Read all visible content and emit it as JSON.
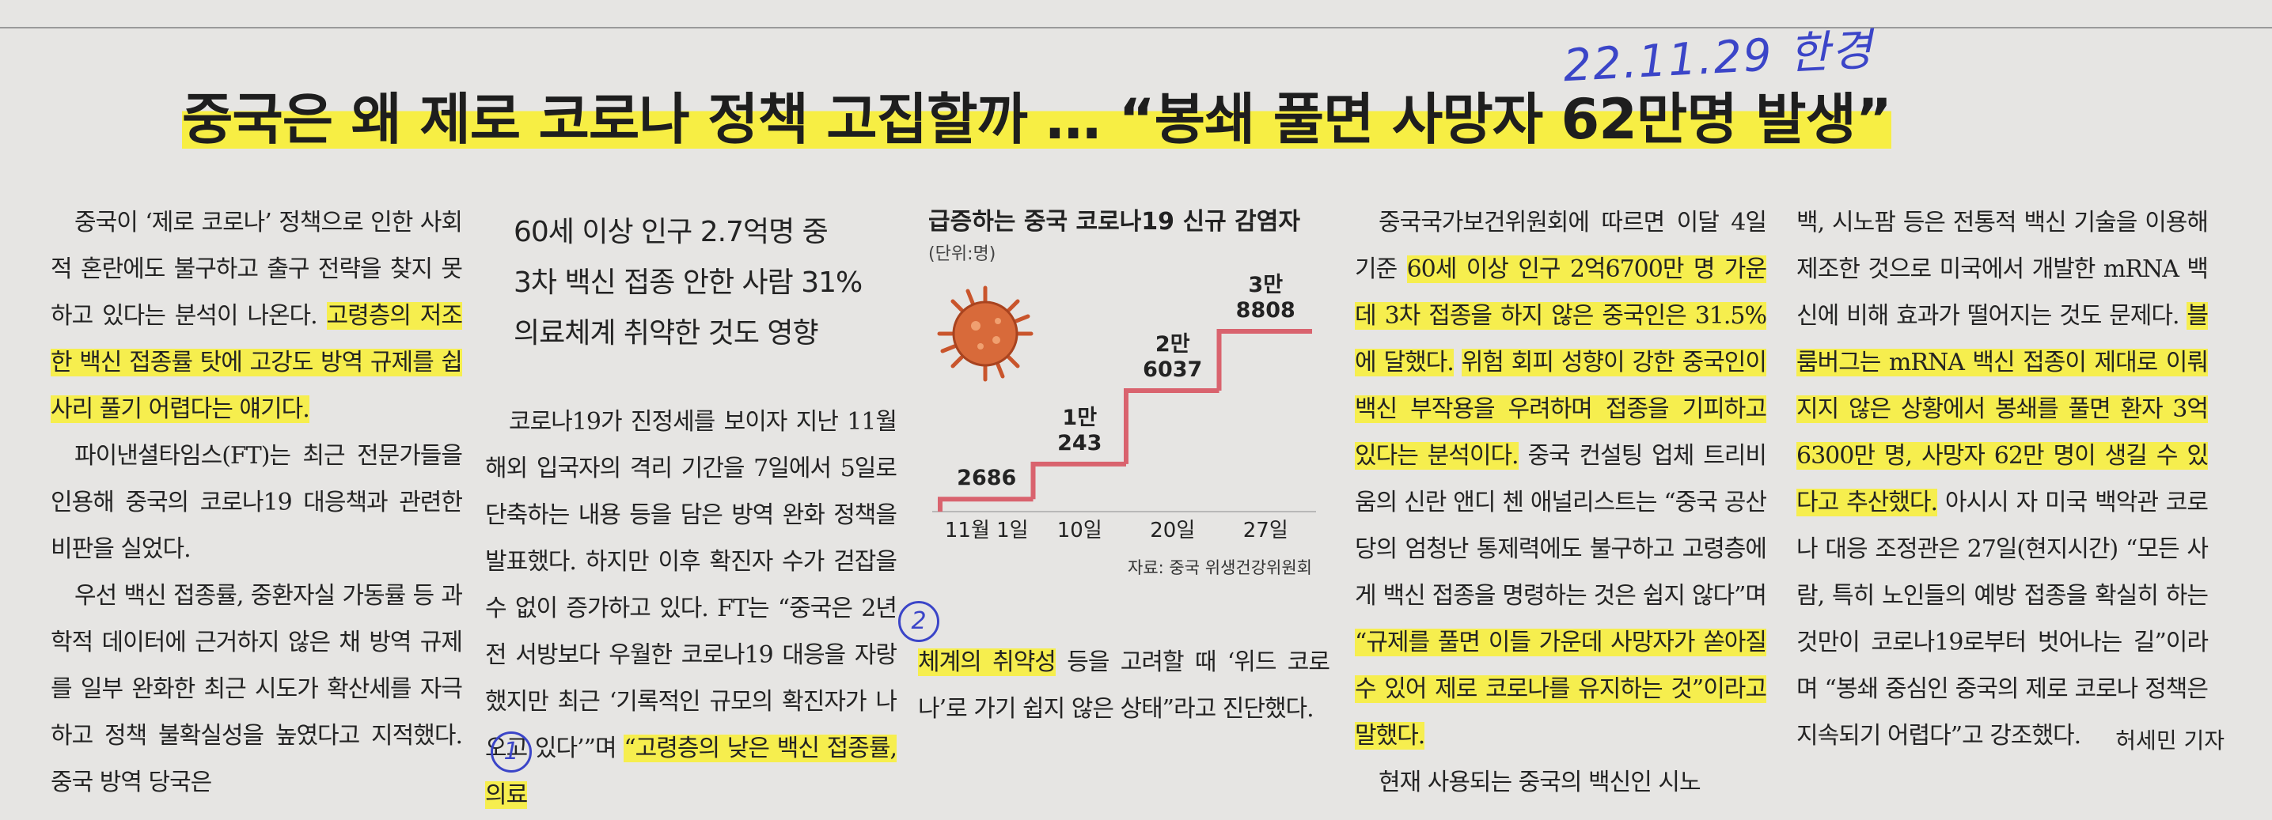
{
  "annotation": {
    "note": "22.11.29 한경",
    "circle_1": "1",
    "circle_2": "2"
  },
  "headline": "중국은 왜 제로 코로나 정책 고집할까 … “봉쇄 풀면 사망자 62만명 발생”",
  "subheads": [
    "60세 이상 인구 2.7억명 중",
    "3차 백신 접종 안한 사람 31%",
    "의료체계 취약한 것도 영향"
  ],
  "columns": [
    {
      "paragraphs": [
        {
          "continued": false,
          "segments": [
            "중국이 ‘제로 코로나’ 정책으로 인한 사회적 혼란에도 불구하고 출구 전략을 찾지 못하고 있다는 분석이 나온다. ",
            {
              "text": "고령층의 저조한 백신 접종률 탓에 고강도 방역 규제를 쉽사리 풀기 어렵다는 얘기다.",
              "highlight": true
            }
          ]
        },
        {
          "continued": false,
          "segments": [
            "파이낸셜타임스(FT)는 최근 전문가들을 인용해 중국의 코로나19 대응책과 관련한 비판을 실었다."
          ]
        },
        {
          "continued": false,
          "segments": [
            "우선 백신 접종률, 중환자실 가동률 등 과학적 데이터에 근거하지 않은 채 방역 규제를 일부 완화한 최근 시도가 확산세를 자극하고 정책 불확실성을 높였다고 지적했다. 중국 방역 당국은"
          ]
        }
      ]
    },
    {
      "paragraphs": [
        {
          "continued": false,
          "segments": [
            "코로나19가 진정세를 보이자 지난 11월 해외 입국자의 격리 기간을 7일에서 5일로 단축하는 내용 등을 담은 방역 완화 정책을 발표했다. 하지만 이후 확진자 수가 걷잡을 수 없이 증가하고 있다. FT는 “중국은 2년 전 서방보다 우월한 코로나19 대응을 자랑했지만 최근 ‘기록적인 규모의 확진자가 나오고 있다’”며 ",
            {
              "text": "“고령층의 낮은 백신 접종률, 의료",
              "highlight": true
            }
          ]
        }
      ]
    },
    {
      "paragraphs": [
        {
          "continued": true,
          "segments": [
            {
              "text": "체계의 취약성",
              "highlight": true
            },
            " 등을 고려할 때 ‘위드 코로나’로 가기 쉽지 않은 상태”라고 진단했다."
          ]
        }
      ]
    },
    {
      "paragraphs": [
        {
          "continued": false,
          "segments": [
            "중국국가보건위원회에 따르면 이달 4일 기준 ",
            {
              "text": "60세 이상 인구 2억6700만 명 가운데 3차 접종을 하지 않은 중국인은 31.5%에 달했다.",
              "highlight": true
            },
            " ",
            {
              "text": "위험 회피 성향이 강한 중국인이 백신 부작용을 우려하며 접종을 기피하고 있다는 분석이다.",
              "highlight": true
            },
            " 중국 컨설팅 업체 트리비움의 신란 앤디 첸 애널리스트는 “중국 공산당의 엄청난 통제력에도 불구하고 고령층에게 백신 접종을 명령하는 것은 쉽지 않다”며 ",
            {
              "text": "“규제를 풀면 이들 가운데 사망자가 쏟아질 수 있어 제로 코로나를 유지하는 것”이라고 말했다.",
              "highlight": true
            }
          ]
        },
        {
          "continued": false,
          "segments": [
            "현재 사용되는 중국의 백신인 시노"
          ]
        }
      ]
    },
    {
      "paragraphs": [
        {
          "continued": true,
          "segments": [
            "백, 시노팜 등은 전통적 백신 기술을 이용해 제조한 것으로 미국에서 개발한 mRNA 백신에 비해 효과가 떨어지는 것도 문제다. ",
            {
              "text": "블룸버그는 mRNA 백신 접종이 제대로 이뤄지지 않은 상황에서 봉쇄를 풀면 환자 3억6300만 명, 사망자 62만 명이 생길 수 있다고 추산했다.",
              "highlight": true
            },
            " 아시시 자 미국 백악관 코로나 대응 조정관은 27일(현지시간) “모든 사람, 특히 노인들의 예방 접종을 확실히 하는 것만이 코로나19로부터 벗어나는 길”이라며 “봉쇄 중심인 중국의 제로 코로나 정책은 지속되기 어렵다”고 강조했다."
          ]
        }
      ]
    }
  ],
  "byline": "허세민 기자",
  "chart_data": {
    "type": "step",
    "title": "급증하는 중국 코로나19 신규 감염자",
    "unit": "(단위:명)",
    "source": "자료: 중국 위생건강위원회",
    "categories": [
      "11월 1일",
      "10일",
      "20일",
      "27일"
    ],
    "values": [
      2686,
      10243,
      26037,
      38808
    ],
    "value_labels": [
      "2686",
      "1만\n243",
      "2만\n6037",
      "3만\n8808"
    ],
    "color": "#d9636e",
    "ylim": [
      0,
      40000
    ]
  }
}
